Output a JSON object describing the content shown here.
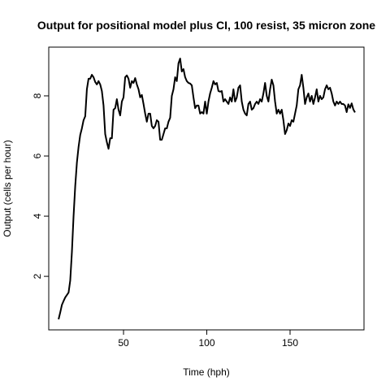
{
  "chart_data": {
    "type": "line",
    "title": "Output for positional model plus CI, 100 resist, 35 micron zone",
    "x_label": "Time (hph)",
    "y_label": "Output (cells per hour)",
    "color": "#000000",
    "xlim": [
      5.1,
      194.4
    ],
    "ylim": [
      0.22,
      9.62
    ],
    "xticks": [
      50,
      100,
      150
    ],
    "yticks": [
      2,
      4,
      6,
      8
    ],
    "x": [
      11,
      12,
      13,
      14,
      15,
      16,
      17,
      18,
      19,
      20,
      21,
      22,
      23,
      24,
      25,
      26,
      27,
      28,
      29,
      30,
      31,
      32,
      33,
      34,
      35,
      36,
      37,
      38,
      39,
      40,
      41,
      42,
      43,
      44,
      45,
      46,
      47,
      48,
      49,
      50,
      51,
      52,
      53,
      54,
      55,
      56,
      57,
      58,
      59,
      60,
      61,
      62,
      63,
      64,
      65,
      66,
      67,
      68,
      69,
      70,
      71,
      72,
      73,
      74,
      75,
      76,
      77,
      78,
      79,
      80,
      81,
      82,
      83,
      84,
      85,
      86,
      87,
      88,
      89,
      90,
      91,
      92,
      93,
      94,
      95,
      96,
      97,
      98,
      99,
      100,
      101,
      102,
      103,
      104,
      105,
      106,
      107,
      108,
      109,
      110,
      111,
      112,
      113,
      114,
      115,
      116,
      117,
      118,
      119,
      120,
      121,
      122,
      123,
      124,
      125,
      126,
      127,
      128,
      129,
      130,
      131,
      132,
      133,
      134,
      135,
      136,
      137,
      138,
      139,
      140,
      141,
      142,
      143,
      144,
      145,
      146,
      147,
      148,
      149,
      150,
      151,
      152,
      153,
      154,
      155,
      156,
      157,
      158,
      159,
      160,
      161,
      162,
      163,
      164,
      165,
      166,
      167,
      168,
      169,
      170,
      171,
      172,
      173,
      174,
      175,
      176,
      177,
      178,
      179,
      180,
      181,
      182,
      183,
      184,
      185,
      186,
      187,
      188,
      189
    ],
    "values": [
      0.57,
      0.8,
      1.05,
      1.18,
      1.3,
      1.38,
      1.46,
      1.86,
      2.8,
      4.0,
      5.0,
      5.78,
      6.3,
      6.7,
      6.92,
      7.19,
      7.32,
      8.22,
      8.57,
      8.57,
      8.7,
      8.62,
      8.46,
      8.38,
      8.49,
      8.38,
      8.16,
      7.68,
      6.73,
      6.46,
      6.24,
      6.59,
      6.59,
      7.54,
      7.59,
      7.89,
      7.54,
      7.35,
      7.81,
      7.95,
      8.62,
      8.68,
      8.57,
      8.27,
      8.49,
      8.43,
      8.59,
      8.38,
      8.22,
      7.95,
      8.03,
      7.73,
      7.41,
      7.14,
      7.41,
      7.41,
      7.0,
      6.92,
      7.0,
      7.19,
      7.14,
      6.54,
      6.54,
      6.73,
      6.92,
      6.92,
      7.14,
      7.27,
      8.0,
      8.22,
      8.62,
      8.49,
      9.08,
      9.24,
      8.81,
      8.89,
      8.62,
      8.49,
      8.43,
      8.41,
      8.35,
      7.95,
      7.59,
      7.68,
      7.68,
      7.41,
      7.46,
      7.41,
      7.81,
      7.41,
      7.81,
      8.08,
      8.27,
      8.49,
      8.38,
      8.43,
      8.16,
      8.14,
      8.16,
      7.81,
      7.89,
      7.81,
      7.73,
      7.95,
      7.81,
      8.22,
      7.81,
      7.95,
      8.27,
      8.35,
      7.81,
      7.54,
      7.41,
      7.35,
      7.73,
      7.81,
      7.54,
      7.59,
      7.73,
      7.81,
      7.73,
      7.89,
      7.81,
      8.08,
      8.43,
      8.0,
      7.81,
      8.22,
      8.54,
      8.35,
      7.81,
      7.41,
      7.54,
      7.41,
      7.54,
      7.19,
      6.73,
      6.86,
      7.08,
      7.0,
      7.19,
      7.14,
      7.41,
      7.68,
      8.22,
      8.35,
      8.7,
      8.27,
      7.73,
      7.95,
      8.08,
      7.81,
      8.0,
      7.73,
      7.95,
      8.22,
      7.81,
      8.0,
      7.89,
      7.95,
      8.22,
      8.35,
      8.22,
      8.27,
      8.08,
      7.81,
      7.68,
      7.81,
      7.73,
      7.81,
      7.73,
      7.73,
      7.68,
      7.46,
      7.72,
      7.6,
      7.75,
      7.55,
      7.45
    ]
  }
}
